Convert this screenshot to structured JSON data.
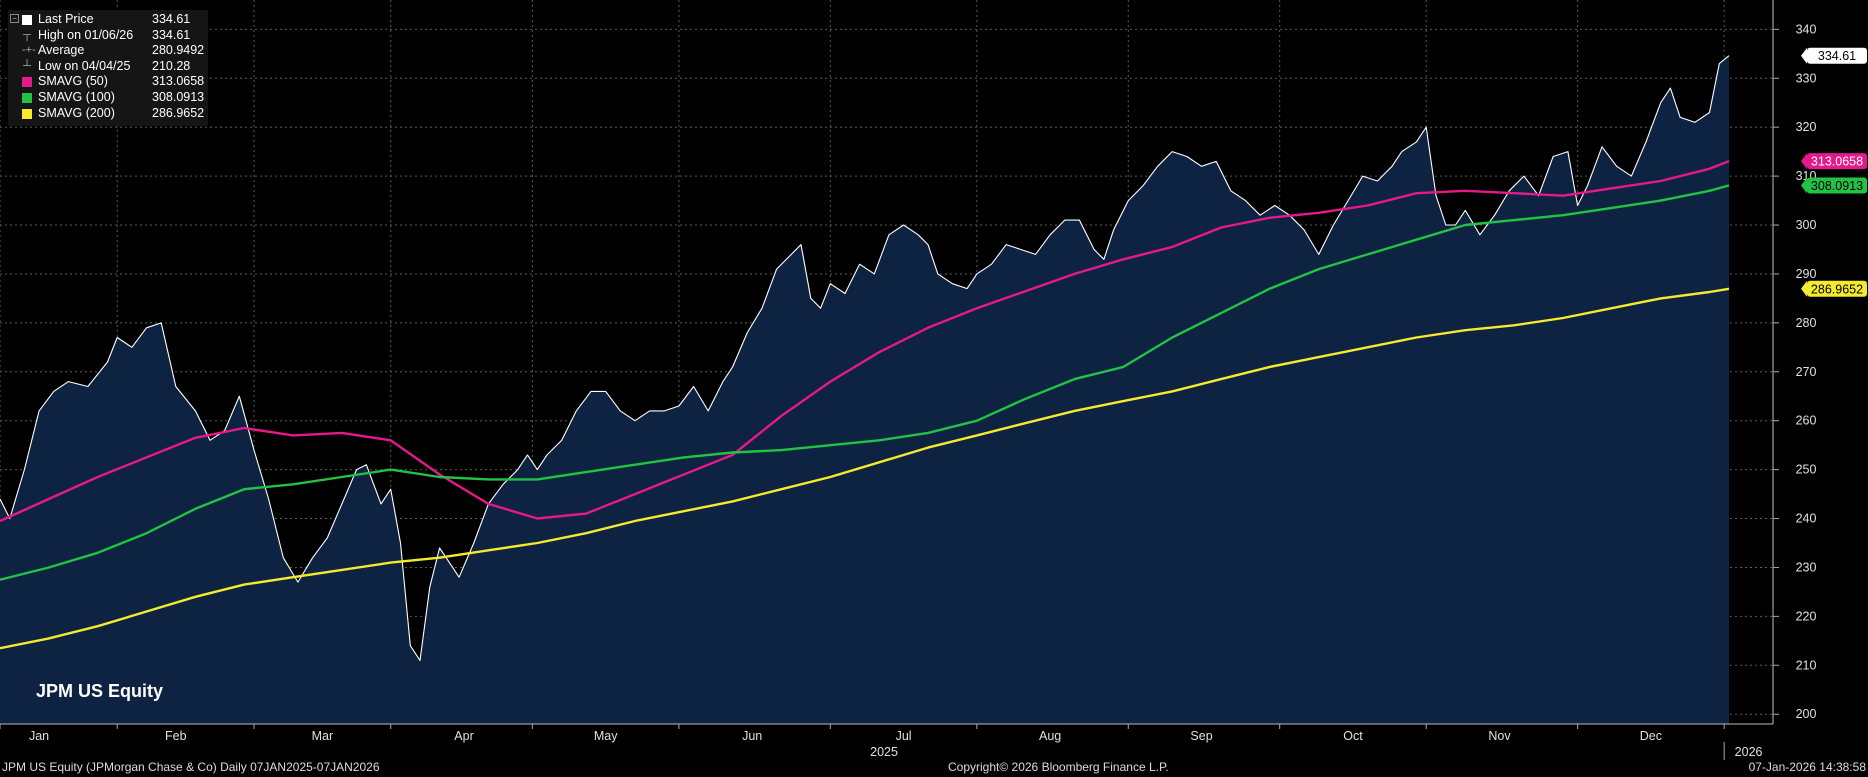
{
  "legend": {
    "rows": [
      {
        "label": "Last Price",
        "value": "334.61",
        "color": "#ffffff",
        "kind": "box"
      },
      {
        "label": "High on 01/06/26",
        "value": "334.61",
        "kind": "high"
      },
      {
        "label": "Average",
        "value": "280.9492",
        "kind": "avg"
      },
      {
        "label": "Low on 04/04/25",
        "value": "210.28",
        "kind": "low"
      },
      {
        "label": "SMAVG (50)",
        "value": "313.0658",
        "color": "#e6198c",
        "kind": "box"
      },
      {
        "label": "SMAVG (100)",
        "value": "308.0913",
        "color": "#22c244",
        "kind": "box"
      },
      {
        "label": "SMAVG (200)",
        "value": "286.9652",
        "color": "#f5eb2d",
        "kind": "box"
      }
    ]
  },
  "ticker_label": "JPM US Equity",
  "footer": {
    "left": "JPM US Equity (JPMorgan Chase & Co) Daily 07JAN2025-07JAN2026",
    "center": "Copyright© 2026 Bloomberg Finance L.P.",
    "right": "07-Jan-2026 14:38:58"
  },
  "chart_data": {
    "type": "line",
    "ylim": [
      198,
      346
    ],
    "y_ticks": [
      200,
      210,
      220,
      230,
      240,
      250,
      260,
      270,
      280,
      290,
      300,
      310,
      320,
      330,
      340
    ],
    "grid": true,
    "legend_placement": "top-left",
    "month_labels": [
      "Jan",
      "Feb",
      "Mar",
      "Apr",
      "May",
      "Jun",
      "Jul",
      "Aug",
      "Sep",
      "Oct",
      "Nov",
      "Dec"
    ],
    "year_labels": [
      "2025",
      "2026"
    ],
    "x_day_range": [
      0,
      363
    ],
    "month_start_days": [
      0,
      24,
      52,
      80,
      109,
      139,
      170,
      200,
      231,
      262,
      292,
      323,
      353
    ],
    "month_label_days": [
      8,
      36,
      66,
      95,
      124,
      154,
      185,
      215,
      246,
      277,
      307,
      338
    ],
    "year_label_days": [
      181,
      358
    ],
    "series": [
      {
        "name": "Last Price",
        "color": "#ffffff",
        "area_fill": "#0e2242",
        "points": [
          [
            0,
            244
          ],
          [
            2,
            240
          ],
          [
            5,
            250
          ],
          [
            8,
            262
          ],
          [
            11,
            266
          ],
          [
            14,
            268
          ],
          [
            18,
            267
          ],
          [
            22,
            272
          ],
          [
            24,
            277
          ],
          [
            27,
            275
          ],
          [
            30,
            279
          ],
          [
            33,
            280
          ],
          [
            36,
            267
          ],
          [
            40,
            262
          ],
          [
            43,
            256
          ],
          [
            46,
            258
          ],
          [
            49,
            265
          ],
          [
            52,
            254
          ],
          [
            55,
            244
          ],
          [
            58,
            232
          ],
          [
            61,
            227
          ],
          [
            64,
            232
          ],
          [
            67,
            236
          ],
          [
            70,
            243
          ],
          [
            73,
            250
          ],
          [
            75,
            251
          ],
          [
            78,
            243
          ],
          [
            80,
            246
          ],
          [
            82,
            235
          ],
          [
            84,
            214
          ],
          [
            86,
            211
          ],
          [
            88,
            226
          ],
          [
            90,
            234
          ],
          [
            92,
            231
          ],
          [
            94,
            228
          ],
          [
            97,
            235
          ],
          [
            100,
            243
          ],
          [
            103,
            247
          ],
          [
            106,
            250
          ],
          [
            108,
            253
          ],
          [
            110,
            250
          ],
          [
            112,
            253
          ],
          [
            115,
            256
          ],
          [
            118,
            262
          ],
          [
            121,
            266
          ],
          [
            124,
            266
          ],
          [
            127,
            262
          ],
          [
            130,
            260
          ],
          [
            133,
            262
          ],
          [
            136,
            262
          ],
          [
            139,
            263
          ],
          [
            142,
            267
          ],
          [
            145,
            262
          ],
          [
            148,
            268
          ],
          [
            150,
            271
          ],
          [
            153,
            278
          ],
          [
            156,
            283
          ],
          [
            159,
            291
          ],
          [
            162,
            294
          ],
          [
            164,
            296
          ],
          [
            166,
            285
          ],
          [
            168,
            283
          ],
          [
            170,
            288
          ],
          [
            173,
            286
          ],
          [
            176,
            292
          ],
          [
            179,
            290
          ],
          [
            182,
            298
          ],
          [
            185,
            300
          ],
          [
            188,
            298
          ],
          [
            190,
            296
          ],
          [
            192,
            290
          ],
          [
            195,
            288
          ],
          [
            198,
            287
          ],
          [
            200,
            290
          ],
          [
            203,
            292
          ],
          [
            206,
            296
          ],
          [
            209,
            295
          ],
          [
            212,
            294
          ],
          [
            215,
            298
          ],
          [
            218,
            301
          ],
          [
            221,
            301
          ],
          [
            224,
            295
          ],
          [
            226,
            293
          ],
          [
            228,
            299
          ],
          [
            231,
            305
          ],
          [
            234,
            308
          ],
          [
            237,
            312
          ],
          [
            240,
            315
          ],
          [
            243,
            314
          ],
          [
            246,
            312
          ],
          [
            249,
            313
          ],
          [
            252,
            307
          ],
          [
            255,
            305
          ],
          [
            258,
            302
          ],
          [
            261,
            304
          ],
          [
            264,
            302
          ],
          [
            267,
            299
          ],
          [
            270,
            294
          ],
          [
            273,
            300
          ],
          [
            276,
            305
          ],
          [
            279,
            310
          ],
          [
            282,
            309
          ],
          [
            285,
            312
          ],
          [
            287,
            315
          ],
          [
            290,
            317
          ],
          [
            292,
            320
          ],
          [
            294,
            306
          ],
          [
            296,
            300
          ],
          [
            298,
            300
          ],
          [
            300,
            303
          ],
          [
            303,
            298
          ],
          [
            306,
            302
          ],
          [
            309,
            307
          ],
          [
            312,
            310
          ],
          [
            315,
            306
          ],
          [
            318,
            314
          ],
          [
            321,
            315
          ],
          [
            323,
            304
          ],
          [
            325,
            308
          ],
          [
            328,
            316
          ],
          [
            331,
            312
          ],
          [
            334,
            310
          ],
          [
            337,
            317
          ],
          [
            340,
            325
          ],
          [
            342,
            328
          ],
          [
            344,
            322
          ],
          [
            347,
            321
          ],
          [
            350,
            323
          ],
          [
            352,
            333
          ],
          [
            354,
            334.61
          ]
        ]
      },
      {
        "name": "SMAVG (50)",
        "color": "#e6198c",
        "points": [
          [
            0,
            239.5
          ],
          [
            10,
            244
          ],
          [
            20,
            248.5
          ],
          [
            30,
            252.5
          ],
          [
            40,
            256.5
          ],
          [
            50,
            258.5
          ],
          [
            60,
            257
          ],
          [
            70,
            257.5
          ],
          [
            80,
            256
          ],
          [
            90,
            249
          ],
          [
            100,
            243
          ],
          [
            110,
            240
          ],
          [
            120,
            241
          ],
          [
            130,
            245
          ],
          [
            140,
            249
          ],
          [
            150,
            253
          ],
          [
            160,
            261
          ],
          [
            170,
            268
          ],
          [
            180,
            274
          ],
          [
            190,
            279
          ],
          [
            200,
            283
          ],
          [
            210,
            286.5
          ],
          [
            220,
            290
          ],
          [
            230,
            293
          ],
          [
            240,
            295.5
          ],
          [
            250,
            299.5
          ],
          [
            260,
            301.5
          ],
          [
            270,
            302.5
          ],
          [
            280,
            304
          ],
          [
            290,
            306.5
          ],
          [
            300,
            307
          ],
          [
            310,
            306.5
          ],
          [
            320,
            306
          ],
          [
            330,
            307.5
          ],
          [
            340,
            309
          ],
          [
            350,
            311.5
          ],
          [
            354,
            313.0658
          ]
        ]
      },
      {
        "name": "SMAVG (100)",
        "color": "#22c244",
        "points": [
          [
            0,
            227.5
          ],
          [
            10,
            230
          ],
          [
            20,
            233
          ],
          [
            30,
            237
          ],
          [
            40,
            242
          ],
          [
            50,
            246
          ],
          [
            60,
            247
          ],
          [
            70,
            248.5
          ],
          [
            80,
            250
          ],
          [
            90,
            248.5
          ],
          [
            100,
            248
          ],
          [
            110,
            248
          ],
          [
            120,
            249.5
          ],
          [
            130,
            251
          ],
          [
            140,
            252.5
          ],
          [
            150,
            253.5
          ],
          [
            160,
            254
          ],
          [
            170,
            255
          ],
          [
            180,
            256
          ],
          [
            190,
            257.5
          ],
          [
            200,
            260
          ],
          [
            210,
            264.5
          ],
          [
            220,
            268.5
          ],
          [
            230,
            271
          ],
          [
            240,
            277
          ],
          [
            250,
            282
          ],
          [
            260,
            287
          ],
          [
            270,
            291
          ],
          [
            280,
            294
          ],
          [
            290,
            297
          ],
          [
            300,
            300
          ],
          [
            310,
            301
          ],
          [
            320,
            302
          ],
          [
            330,
            303.5
          ],
          [
            340,
            305
          ],
          [
            350,
            307
          ],
          [
            354,
            308.0913
          ]
        ]
      },
      {
        "name": "SMAVG (200)",
        "color": "#f5eb2d",
        "points": [
          [
            0,
            213.5
          ],
          [
            10,
            215.5
          ],
          [
            20,
            218
          ],
          [
            30,
            221
          ],
          [
            40,
            224
          ],
          [
            50,
            226.5
          ],
          [
            60,
            228
          ],
          [
            70,
            229.5
          ],
          [
            80,
            231
          ],
          [
            90,
            232
          ],
          [
            100,
            233.5
          ],
          [
            110,
            235
          ],
          [
            120,
            237
          ],
          [
            130,
            239.5
          ],
          [
            140,
            241.5
          ],
          [
            150,
            243.5
          ],
          [
            160,
            246
          ],
          [
            170,
            248.5
          ],
          [
            180,
            251.5
          ],
          [
            190,
            254.5
          ],
          [
            200,
            257
          ],
          [
            210,
            259.5
          ],
          [
            220,
            262
          ],
          [
            230,
            264
          ],
          [
            240,
            266
          ],
          [
            250,
            268.5
          ],
          [
            260,
            271
          ],
          [
            270,
            273
          ],
          [
            280,
            275
          ],
          [
            290,
            277
          ],
          [
            300,
            278.5
          ],
          [
            310,
            279.5
          ],
          [
            320,
            281
          ],
          [
            330,
            283
          ],
          [
            340,
            285
          ],
          [
            350,
            286.3
          ],
          [
            354,
            286.9652
          ]
        ]
      }
    ],
    "last_value_tags": [
      {
        "value": 334.61,
        "text": "334.61",
        "bg": "#ffffff",
        "fg": "#000000"
      },
      {
        "value": 313.0658,
        "text": "313.0658",
        "bg": "#e6198c",
        "fg": "#ffffff"
      },
      {
        "value": 308.0913,
        "text": "308.0913",
        "bg": "#22c244",
        "fg": "#000000"
      },
      {
        "value": 286.9652,
        "text": "286.9652",
        "bg": "#f5eb2d",
        "fg": "#000000"
      }
    ]
  }
}
